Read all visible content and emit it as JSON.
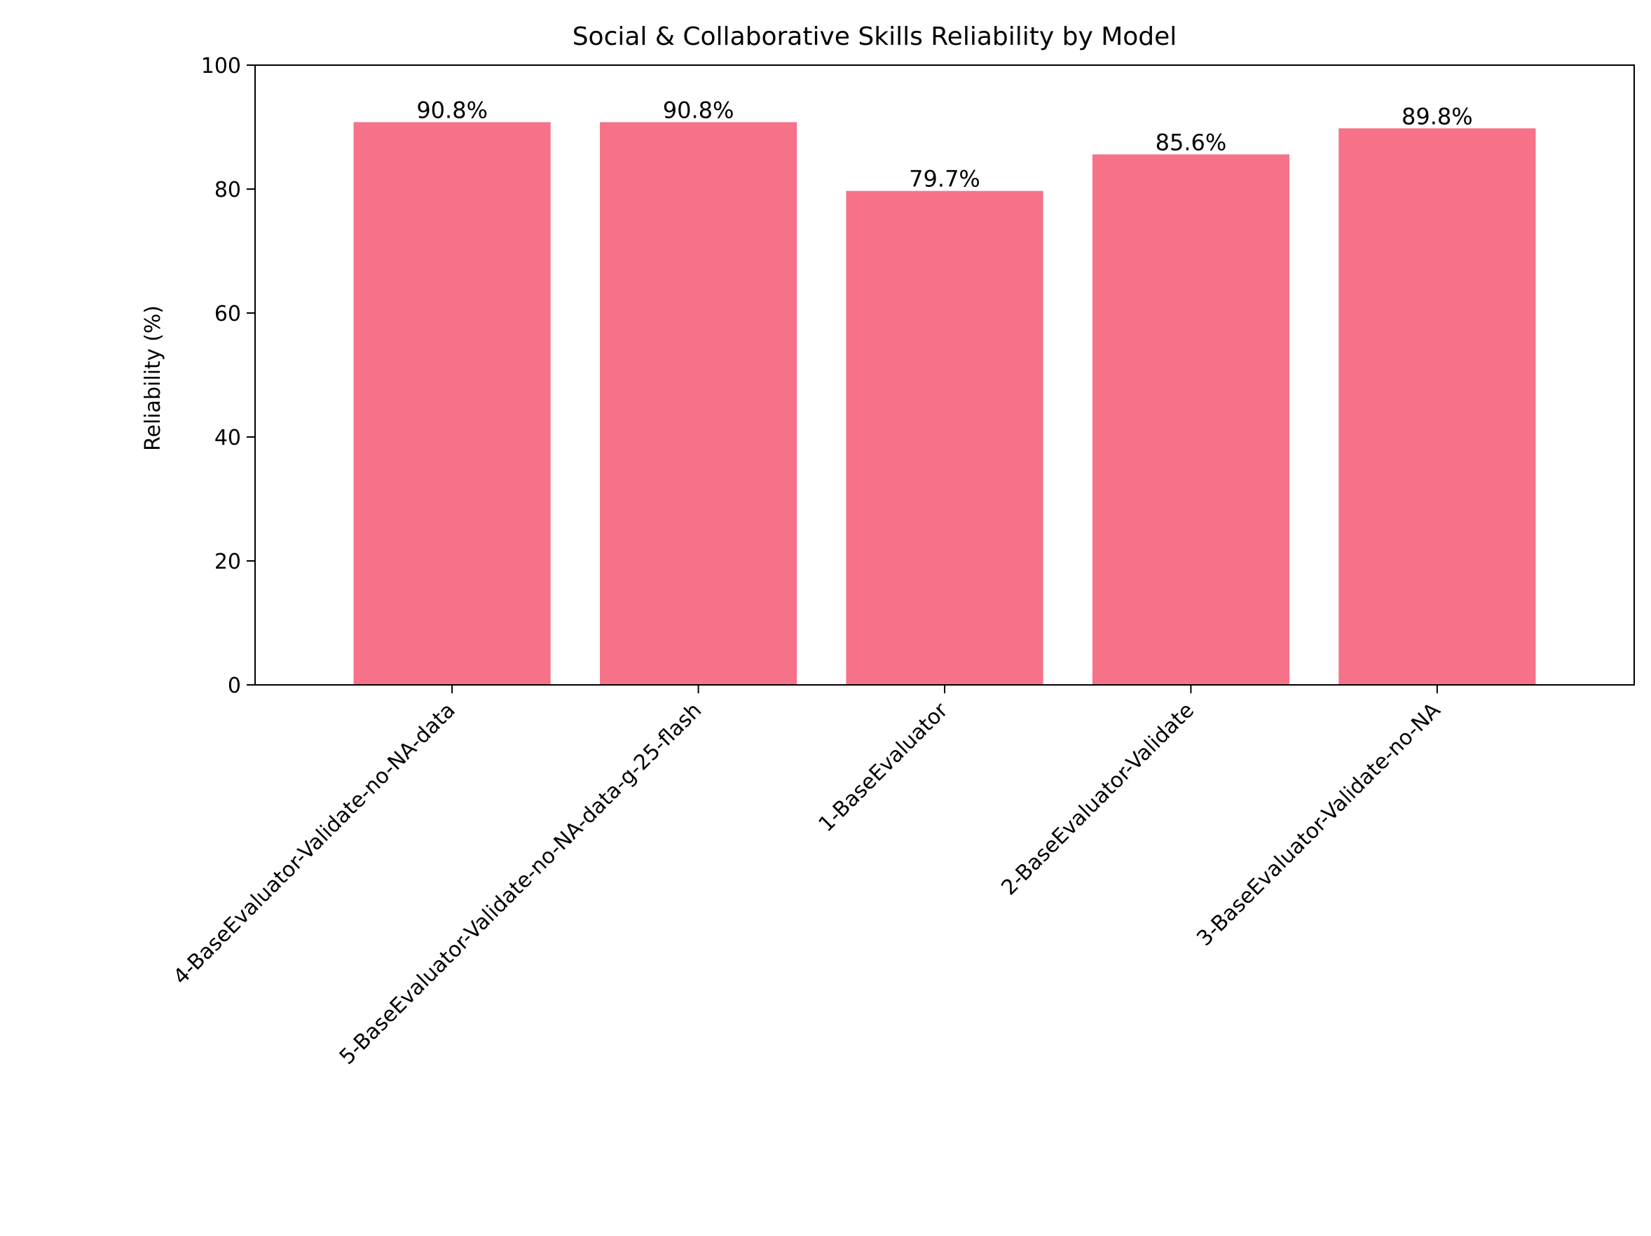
{
  "chart_data": {
    "type": "bar",
    "title": "Social & Collaborative Skills Reliability by Model",
    "xlabel": "",
    "ylabel": "Reliability (%)",
    "ylim": [
      0,
      100
    ],
    "yticks": [
      0,
      20,
      40,
      60,
      80,
      100
    ],
    "categories": [
      "4-BaseEvaluator-Validate-no-NA-data",
      "5-BaseEvaluator-Validate-no-NA-data-g-25-flash",
      "1-BaseEvaluator",
      "2-BaseEvaluator-Validate",
      "3-BaseEvaluator-Validate-no-NA"
    ],
    "values": [
      90.8,
      90.8,
      79.7,
      85.6,
      89.8
    ],
    "data_labels": [
      "90.8%",
      "90.8%",
      "79.7%",
      "85.6%",
      "89.8%"
    ],
    "bar_color": "#f67288",
    "grid": false,
    "legend": "none"
  }
}
